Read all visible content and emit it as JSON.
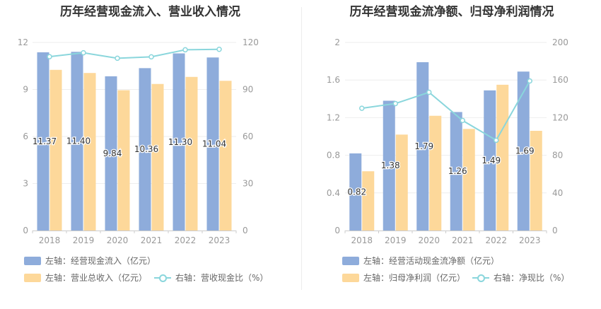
{
  "charts": [
    {
      "title": "历年经营现金流入、营业收入情况",
      "legend": [
        "左轴：经营现金流入（亿元）",
        "左轴：营业总收入（亿元）",
        "右轴：营收现金比（%）"
      ]
    },
    {
      "title": "历年经营现金流净额、归母净利润情况",
      "legend": [
        "左轴：经营活动现金流净额（亿元）",
        "左轴：归母净利润（亿元）",
        "右轴：净现比（%）"
      ]
    }
  ],
  "colors": {
    "bar_primary": "#8eacdb",
    "bar_secondary": "#fdd89a",
    "line": "#8ad6dc",
    "axis_text": "#999999",
    "grid": "#eeeeee"
  },
  "chart_data": [
    {
      "type": "bar",
      "title": "历年经营现金流入、营业收入情况",
      "categories": [
        "2018",
        "2019",
        "2020",
        "2021",
        "2022",
        "2023"
      ],
      "left_axis": {
        "ticks": [
          "0",
          "3",
          "6",
          "9",
          "12"
        ],
        "ylim": [
          0,
          12
        ]
      },
      "right_axis": {
        "ticks": [
          "0",
          "30",
          "60",
          "90",
          "120"
        ],
        "ylim": [
          0,
          120
        ]
      },
      "series": [
        {
          "name": "左轴：经营现金流入（亿元）",
          "type": "bar",
          "axis": "left",
          "values": [
            11.37,
            11.4,
            9.84,
            10.36,
            11.3,
            11.04
          ],
          "labels": [
            "11.37",
            "11.40",
            "9.84",
            "10.36",
            "11.30",
            "11.04"
          ]
        },
        {
          "name": "左轴：营业总收入（亿元）",
          "type": "bar",
          "axis": "left",
          "values": [
            10.25,
            10.05,
            8.95,
            9.35,
            9.8,
            9.55
          ]
        },
        {
          "name": "右轴：营收现金比（%）",
          "type": "line",
          "axis": "right",
          "values": [
            110.9,
            113.4,
            109.9,
            110.8,
            115.3,
            115.6
          ]
        }
      ]
    },
    {
      "type": "bar",
      "title": "历年经营现金流净额、归母净利润情况",
      "categories": [
        "2018",
        "2019",
        "2020",
        "2021",
        "2022",
        "2023"
      ],
      "left_axis": {
        "ticks": [
          "0",
          "0.4",
          "0.8",
          "1.2",
          "1.6",
          "2"
        ],
        "ylim": [
          0,
          2
        ]
      },
      "right_axis": {
        "ticks": [
          "0",
          "40",
          "80",
          "120",
          "160",
          "200"
        ],
        "ylim": [
          0,
          200
        ]
      },
      "series": [
        {
          "name": "左轴：经营活动现金流净额（亿元）",
          "type": "bar",
          "axis": "left",
          "values": [
            0.82,
            1.38,
            1.79,
            1.26,
            1.49,
            1.69
          ],
          "labels": [
            "0.82",
            "1.38",
            "1.79",
            "1.26",
            "1.49",
            "1.69"
          ]
        },
        {
          "name": "左轴：归母净利润（亿元）",
          "type": "bar",
          "axis": "left",
          "values": [
            0.63,
            1.02,
            1.22,
            1.08,
            1.55,
            1.06
          ]
        },
        {
          "name": "右轴：净现比（%）",
          "type": "line",
          "axis": "right",
          "values": [
            130,
            135,
            147,
            117,
            96,
            159
          ]
        }
      ]
    }
  ]
}
